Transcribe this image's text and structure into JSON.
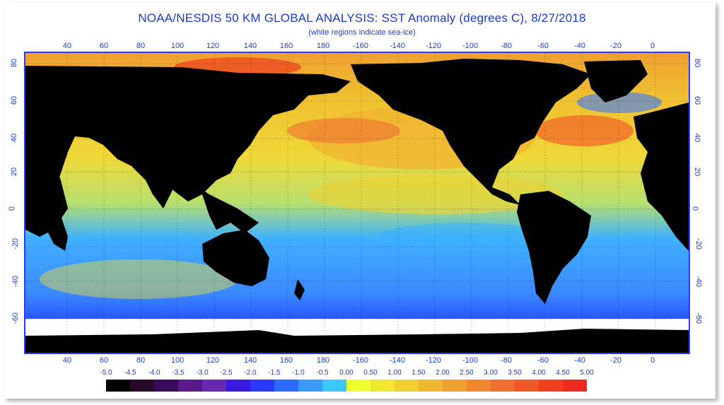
{
  "title": "NOAA/NESDIS 50 KM GLOBAL ANALYSIS: SST Anomaly (degrees C), 8/27/2018",
  "subtitle": "(white regions indicate sea-ice)",
  "lon_ticks": [
    "40",
    "60",
    "80",
    "100",
    "120",
    "140",
    "160",
    "180",
    "-160",
    "-140",
    "-120",
    "-100",
    "-80",
    "-60",
    "-40",
    "-20",
    "0"
  ],
  "lat_ticks": [
    "80",
    "60",
    "40",
    "20",
    "0",
    "-20",
    "-40",
    "-60"
  ],
  "colorbar": {
    "labels": [
      "-5.0",
      "-4.5",
      "-4.0",
      "-3.5",
      "-3.0",
      "-2.5",
      "-2.0",
      "-1.5",
      "-1.0",
      "-0.5",
      "0.00",
      "0.50",
      "1.00",
      "1.50",
      "2.00",
      "2.50",
      "3.00",
      "3.50",
      "4.00",
      "4.50",
      "5.00"
    ],
    "colors": [
      "#000000",
      "#2a0a2a",
      "#3a0a5a",
      "#5a1a8a",
      "#6a2ab0",
      "#3a1ae0",
      "#2a3aff",
      "#2a6aff",
      "#3a9aff",
      "#3ac8ff",
      "#f0ff30",
      "#f0e830",
      "#f0d030",
      "#f0b830",
      "#f0a030",
      "#f08830",
      "#f07030",
      "#f05828",
      "#f04020",
      "#f02a20"
    ]
  },
  "colors": {
    "land": "#000000",
    "sea_ice": "#ffffff",
    "title_text": "#1a3ccc",
    "map_border": "#2b39ff"
  }
}
